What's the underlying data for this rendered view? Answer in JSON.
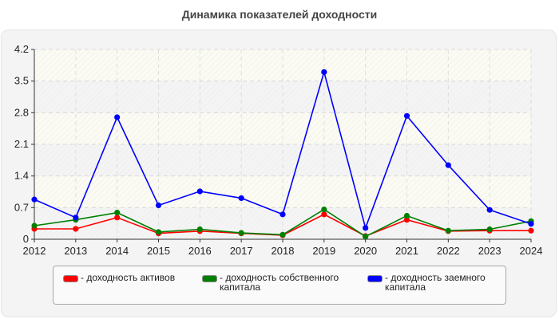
{
  "title": "Динамика показателей доходности",
  "colors": {
    "series_red": "#ff0000",
    "series_green": "#008000",
    "series_blue": "#0000ff",
    "panel_bg": "#f4f4f4",
    "band_a": "#fbfbf3",
    "band_b": "#f4f4f4"
  },
  "legend": {
    "items": [
      {
        "label": "- доходность активов",
        "color": "#ff0000"
      },
      {
        "label": "- доходность собственного\nкапитала",
        "color": "#008000"
      },
      {
        "label": "- доходность заемного\nкапитала",
        "color": "#0000ff"
      }
    ]
  },
  "chart_data": {
    "type": "line",
    "title": "Динамика показателей доходности",
    "xlabel": "",
    "ylabel": "",
    "categories": [
      "2012",
      "2013",
      "2014",
      "2015",
      "2016",
      "2017",
      "2018",
      "2019",
      "2020",
      "2021",
      "2022",
      "2023",
      "2024"
    ],
    "y_ticks": [
      "0",
      "0.7",
      "1.4",
      "2.1",
      "2.8",
      "3.5",
      "4.2"
    ],
    "ylim": [
      0,
      4.2
    ],
    "grid": true,
    "legend_position": "bottom",
    "series": [
      {
        "name": "доходность активов",
        "color": "#ff0000",
        "values": [
          0.23,
          0.23,
          0.48,
          0.13,
          0.18,
          0.13,
          0.09,
          0.55,
          0.07,
          0.43,
          0.18,
          0.19,
          0.19
        ]
      },
      {
        "name": "доходность собственного капитала",
        "color": "#008000",
        "values": [
          0.3,
          0.43,
          0.59,
          0.16,
          0.22,
          0.14,
          0.1,
          0.66,
          0.06,
          0.52,
          0.19,
          0.22,
          0.4
        ]
      },
      {
        "name": "доходность заемного капитала",
        "color": "#0000ff",
        "values": [
          0.88,
          0.48,
          2.7,
          0.75,
          1.06,
          0.91,
          0.55,
          3.7,
          0.25,
          2.73,
          1.64,
          0.65,
          0.34
        ]
      }
    ]
  }
}
